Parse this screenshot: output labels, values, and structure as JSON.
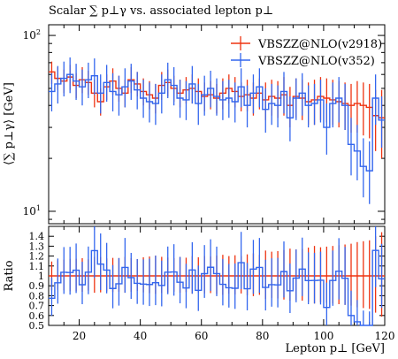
{
  "chart_data": {
    "type": "line",
    "title": "Scalar ∑ p⊥γ vs. associated lepton p⊥",
    "xlabel": "Lepton p⊥ [GeV]",
    "ylabel": "⟨∑ p⊥γ⟩ [GeV]",
    "ratio_ylabel": "Ratio",
    "x_range": [
      10,
      120
    ],
    "y_range": [
      8.5,
      115
    ],
    "y_scale": "log",
    "ratio_range": [
      0.5,
      1.5
    ],
    "x_ticks": [
      20,
      40,
      60,
      80,
      100,
      120
    ],
    "y_ticks": [
      {
        "value": 10,
        "base": "10",
        "exp": "1"
      },
      {
        "value": 100,
        "base": "10",
        "exp": "2"
      }
    ],
    "ratio_ticks": [
      0.5,
      0.6,
      0.7,
      0.8,
      0.9,
      1,
      1.1,
      1.2,
      1.3,
      1.4
    ],
    "bin_edges": [
      10,
      12,
      14,
      16,
      18,
      20,
      22,
      24,
      26,
      28,
      30,
      32,
      34,
      36,
      38,
      40,
      42,
      44,
      46,
      48,
      50,
      52,
      54,
      56,
      58,
      60,
      62,
      64,
      66,
      68,
      70,
      72,
      74,
      76,
      78,
      80,
      82,
      84,
      86,
      88,
      90,
      92,
      94,
      96,
      98,
      100,
      102,
      104,
      106,
      108,
      110,
      112,
      114,
      116,
      118,
      120
    ],
    "series": [
      {
        "name": "VBSZZ@NLO(v2918)",
        "color": "#ee3311",
        "values": [
          62,
          57,
          55,
          58,
          52,
          56,
          54,
          47,
          42,
          51,
          55,
          50,
          47,
          56,
          53,
          48,
          46,
          44,
          52,
          54,
          50,
          47,
          49,
          50,
          48,
          45,
          46,
          44,
          47,
          50,
          48,
          45,
          46,
          44,
          47,
          43,
          45,
          44,
          46,
          40,
          45,
          44,
          42,
          43,
          45,
          44,
          43,
          42,
          41,
          40,
          41,
          40,
          39,
          35,
          34
        ],
        "errors_low": [
          9,
          8,
          8,
          9,
          8,
          9,
          8,
          8,
          7,
          8,
          9,
          8,
          8,
          9,
          8,
          8,
          8,
          8,
          9,
          9,
          8,
          8,
          8,
          9,
          8,
          8,
          8,
          8,
          9,
          9,
          9,
          8,
          9,
          9,
          9,
          10,
          10,
          10,
          11,
          10,
          11,
          11,
          11,
          12,
          12,
          12,
          12,
          12,
          12,
          12,
          13,
          13,
          13,
          13,
          14
        ],
        "errors_high": [
          9,
          9,
          9,
          10,
          9,
          10,
          9,
          9,
          8,
          9,
          10,
          9,
          9,
          10,
          9,
          9,
          9,
          9,
          10,
          10,
          9,
          9,
          9,
          10,
          9,
          9,
          9,
          9,
          10,
          10,
          10,
          9,
          10,
          10,
          10,
          11,
          11,
          11,
          12,
          11,
          12,
          12,
          12,
          13,
          13,
          13,
          13,
          13,
          13,
          13,
          14,
          14,
          14,
          14,
          15
        ]
      },
      {
        "name": "VBSZZ@NLO(v352)",
        "color": "#3366ee",
        "values": [
          48,
          53,
          57,
          60,
          55,
          51,
          56,
          59,
          47,
          54,
          48,
          46,
          51,
          55,
          49,
          44,
          42,
          41,
          47,
          56,
          52,
          44,
          43,
          53,
          41,
          46,
          50,
          45,
          43,
          44,
          42,
          51,
          40,
          47,
          51,
          38,
          41,
          40,
          48,
          34,
          44,
          47,
          40,
          41,
          43,
          30,
          41,
          44,
          40,
          24,
          22,
          18,
          17,
          44,
          33
        ],
        "errors_low": [
          11,
          12,
          12,
          13,
          12,
          11,
          12,
          13,
          11,
          12,
          11,
          11,
          12,
          12,
          11,
          10,
          10,
          10,
          11,
          12,
          12,
          10,
          10,
          12,
          10,
          11,
          11,
          10,
          10,
          10,
          10,
          12,
          10,
          11,
          12,
          10,
          10,
          10,
          12,
          9,
          11,
          12,
          10,
          10,
          11,
          9,
          11,
          12,
          11,
          8,
          7,
          6,
          6,
          13,
          10
        ],
        "errors_high": [
          13,
          14,
          14,
          15,
          14,
          13,
          14,
          15,
          13,
          14,
          13,
          13,
          14,
          14,
          13,
          12,
          12,
          12,
          13,
          14,
          14,
          12,
          12,
          14,
          12,
          13,
          13,
          12,
          12,
          12,
          12,
          14,
          12,
          13,
          14,
          12,
          12,
          12,
          14,
          11,
          13,
          14,
          12,
          12,
          13,
          11,
          13,
          14,
          13,
          10,
          9,
          8,
          8,
          16,
          12
        ]
      }
    ]
  }
}
